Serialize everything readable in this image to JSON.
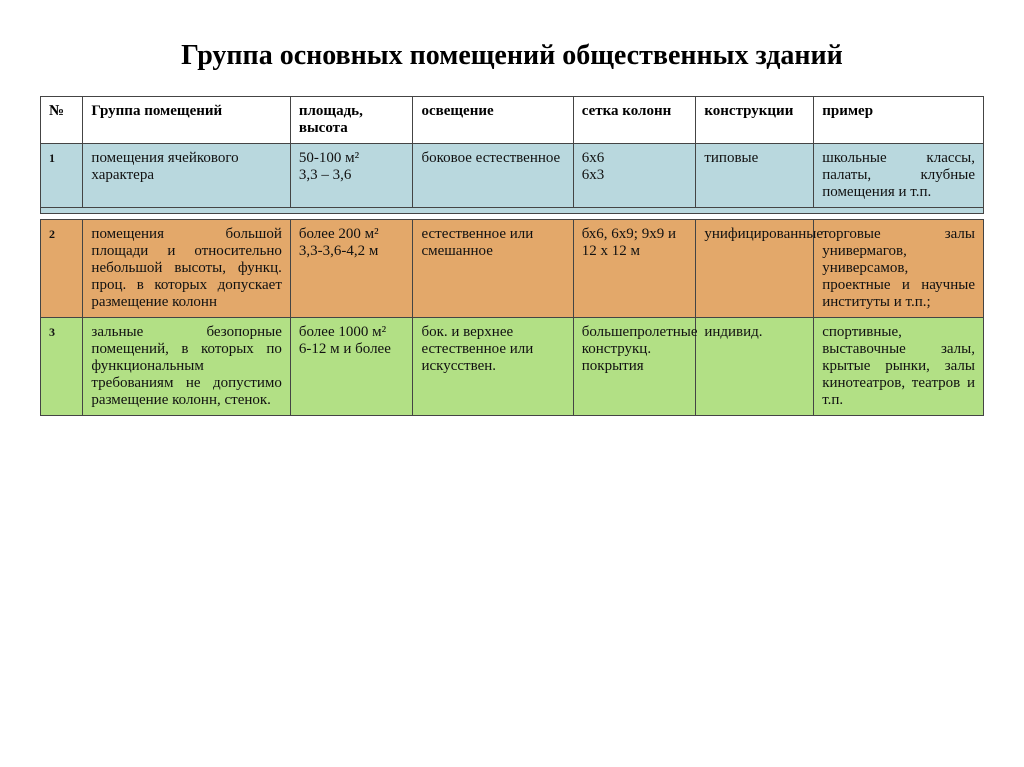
{
  "title": "Группа основных помещений общественных зданий",
  "columns": {
    "num": "№",
    "group": "Группа помещений",
    "area": "площадь, высота",
    "light": "освещение",
    "grid": "сетка колонн",
    "constr": "конструкции",
    "example": "пример"
  },
  "rows": [
    {
      "num": "1",
      "group": "помещения ячейкового характера",
      "area": "50-100 м²\n3,3 – 3,6",
      "light": "боковое естественное",
      "grid": "6х6\n6х3",
      "constr": "типовые",
      "example": "школьные классы, палаты, клубные помещения и т.п.",
      "bg": "#b9d8de"
    },
    {
      "num": "2",
      "group": "помещения большой площади и относительно небольшой высоты, функц. проц. в которых допускает размещение колонн",
      "area": "более 200 м²\n3,3-3,6-4,2 м",
      "light": "естественное или смешанное",
      "grid": "бх6, 6х9; 9х9 и\n12 х 12 м",
      "constr": "унифицированные",
      "example": "торговые залы универмагов, универсамов, проектные и научные институты и т.п.;",
      "bg": "#e3a86a"
    },
    {
      "num": "3",
      "group": "зальные безопорные помещений, в которых по функциональным требованиям не допустимо размещение колонн, стенок.",
      "area": "более 1000 м²\n6-12 м и более",
      "light": "бок. и верхнее естественное или искусствен.",
      "grid": "большепролетные конструкц. покрытия",
      "constr": "индивид.",
      "example": "спортивные, выставочные залы, крытые рынки, залы кинотеатров, театров и т.п.",
      "bg": "#b2e085"
    }
  ],
  "style": {
    "font_family": "Times New Roman",
    "title_fontsize": 28,
    "header_fontsize": 15,
    "cell_fontsize": 15,
    "border_color": "#444444",
    "row_bg_1": "#b9d8de",
    "row_bg_2": "#e3a86a",
    "row_bg_3": "#b2e085",
    "page_bg": "#ffffff"
  }
}
